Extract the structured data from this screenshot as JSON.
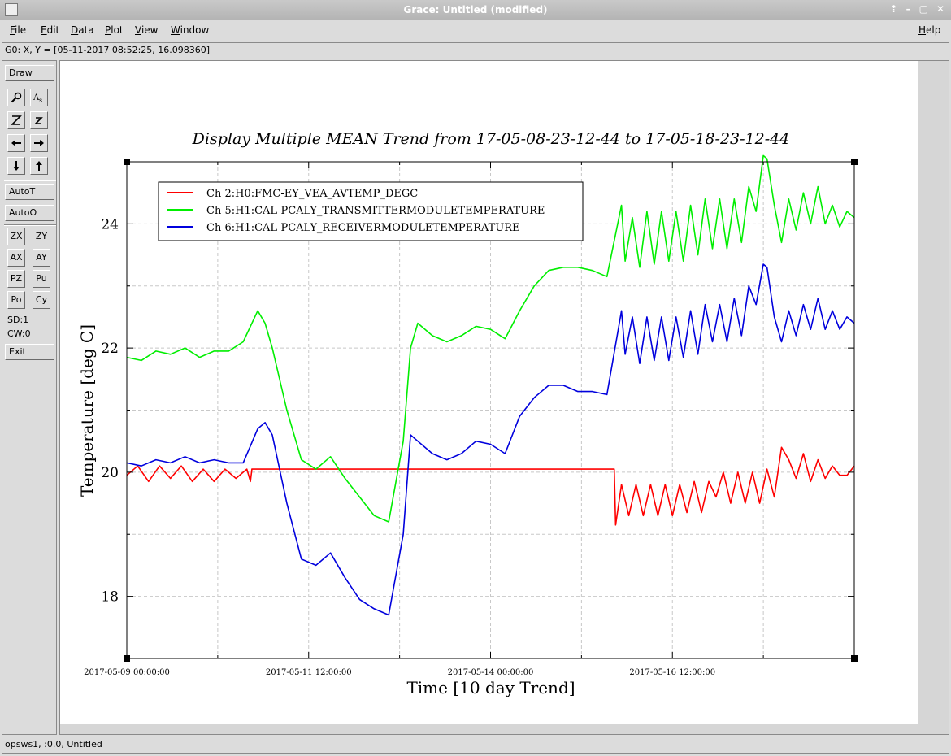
{
  "window": {
    "title": "Grace: Untitled (modified)",
    "controls": [
      "⇡",
      "–",
      "▢",
      "✕"
    ]
  },
  "menu": {
    "items": [
      "File",
      "Edit",
      "Data",
      "Plot",
      "View",
      "Window"
    ],
    "help": "Help"
  },
  "locator": {
    "text": "G0: X, Y = [05-11-2017 08:52:25, 16.098360]"
  },
  "toolbar": {
    "draw": "Draw",
    "autot": "AutoT",
    "autoo": "AutoO",
    "exit": "Exit",
    "zx": "ZX",
    "zy": "ZY",
    "ax": "AX",
    "ay": "AY",
    "pz": "PZ",
    "pu": "Pu",
    "po": "Po",
    "cy": "Cy",
    "sd": "SD:1",
    "cw": "CW:0",
    "icons": [
      "zoom-icon",
      "text-icon",
      "zoom-out-icon",
      "zoom-in-icon",
      "arrow-left-icon",
      "arrow-right-icon",
      "arrow-down-icon",
      "arrow-up-icon"
    ]
  },
  "status": {
    "text": "opsws1, :0.0, Untitled"
  },
  "chart_data": {
    "type": "line",
    "title": "Display Multiple MEAN Trend from 17-05-08-23-12-44 to 17-05-18-23-12-44",
    "xlabel": "Time [10 day Trend]",
    "ylabel": "Temperature [deg C]",
    "x_unit": "days since 2017-05-09 00:00:00",
    "xlim": [
      0,
      10
    ],
    "ylim": [
      17,
      25
    ],
    "x_ticks": [
      {
        "x": 0,
        "label": "2017-05-09 00:00:00"
      },
      {
        "x": 2.5,
        "label": "2017-05-11 12:00:00"
      },
      {
        "x": 5,
        "label": "2017-05-14 00:00:00"
      },
      {
        "x": 7.5,
        "label": "2017-05-16 12:00:00"
      }
    ],
    "y_ticks": [
      18,
      20,
      22,
      24
    ],
    "grid": true,
    "legend_position": "top-left",
    "series": [
      {
        "name": "Ch 2:H0:FMC-EY_VEA_AVTEMP_DEGC",
        "color": "#ff0000",
        "x": [
          0,
          0.15,
          0.3,
          0.45,
          0.6,
          0.75,
          0.9,
          1.05,
          1.2,
          1.35,
          1.5,
          1.65,
          1.7,
          1.72,
          3.0,
          4.5,
          6.0,
          6.7,
          6.72,
          6.8,
          6.9,
          7.0,
          7.1,
          7.2,
          7.3,
          7.4,
          7.5,
          7.6,
          7.7,
          7.8,
          7.9,
          8.0,
          8.1,
          8.2,
          8.3,
          8.4,
          8.5,
          8.6,
          8.7,
          8.8,
          8.9,
          9.0,
          9.1,
          9.2,
          9.3,
          9.4,
          9.5,
          9.6,
          9.7,
          9.8,
          9.9,
          10.0
        ],
        "y": [
          19.95,
          20.1,
          19.85,
          20.1,
          19.9,
          20.1,
          19.85,
          20.05,
          19.85,
          20.05,
          19.9,
          20.05,
          19.85,
          20.05,
          20.05,
          20.05,
          20.05,
          20.05,
          19.15,
          19.8,
          19.3,
          19.8,
          19.3,
          19.8,
          19.3,
          19.8,
          19.3,
          19.8,
          19.35,
          19.85,
          19.35,
          19.85,
          19.6,
          20.0,
          19.5,
          20.0,
          19.5,
          20.0,
          19.5,
          20.05,
          19.6,
          20.4,
          20.2,
          19.9,
          20.3,
          19.85,
          20.2,
          19.9,
          20.1,
          19.95,
          19.95,
          20.1
        ]
      },
      {
        "name": "Ch 5:H1:CAL-PCALY_TRANSMITTERMODULETEMPERATURE",
        "color": "#00ee00",
        "x": [
          0,
          0.2,
          0.4,
          0.6,
          0.8,
          1.0,
          1.2,
          1.4,
          1.6,
          1.8,
          1.9,
          2.0,
          2.2,
          2.4,
          2.6,
          2.8,
          3.0,
          3.2,
          3.4,
          3.6,
          3.8,
          3.9,
          4.0,
          4.2,
          4.4,
          4.6,
          4.8,
          5.0,
          5.2,
          5.4,
          5.6,
          5.8,
          6.0,
          6.2,
          6.4,
          6.6,
          6.8,
          6.85,
          6.95,
          7.05,
          7.15,
          7.25,
          7.35,
          7.45,
          7.55,
          7.65,
          7.75,
          7.85,
          7.95,
          8.05,
          8.15,
          8.25,
          8.35,
          8.45,
          8.55,
          8.65,
          8.75,
          8.8,
          8.9,
          9.0,
          9.1,
          9.2,
          9.3,
          9.4,
          9.5,
          9.6,
          9.7,
          9.8,
          9.9,
          10.0
        ],
        "y": [
          21.85,
          21.8,
          21.95,
          21.9,
          22.0,
          21.85,
          21.95,
          21.95,
          22.1,
          22.6,
          22.4,
          22.0,
          21.0,
          20.2,
          20.05,
          20.25,
          19.9,
          19.6,
          19.3,
          19.2,
          20.5,
          22.0,
          22.4,
          22.2,
          22.1,
          22.2,
          22.35,
          22.3,
          22.15,
          22.6,
          23.0,
          23.25,
          23.3,
          23.3,
          23.25,
          23.15,
          24.3,
          23.4,
          24.1,
          23.3,
          24.2,
          23.35,
          24.2,
          23.4,
          24.2,
          23.4,
          24.3,
          23.5,
          24.4,
          23.6,
          24.4,
          23.6,
          24.4,
          23.7,
          24.6,
          24.2,
          25.1,
          25.05,
          24.3,
          23.7,
          24.4,
          23.9,
          24.5,
          24.0,
          24.6,
          24.0,
          24.3,
          23.95,
          24.2,
          24.1
        ]
      },
      {
        "name": "Ch 6:H1:CAL-PCALY_RECEIVERMODULETEMPERATURE",
        "color": "#0000dd",
        "x": [
          0,
          0.2,
          0.4,
          0.6,
          0.8,
          1.0,
          1.2,
          1.4,
          1.6,
          1.8,
          1.9,
          2.0,
          2.2,
          2.4,
          2.6,
          2.8,
          3.0,
          3.2,
          3.4,
          3.6,
          3.8,
          3.9,
          4.0,
          4.2,
          4.4,
          4.6,
          4.8,
          5.0,
          5.2,
          5.4,
          5.6,
          5.8,
          6.0,
          6.2,
          6.4,
          6.6,
          6.8,
          6.85,
          6.95,
          7.05,
          7.15,
          7.25,
          7.35,
          7.45,
          7.55,
          7.65,
          7.75,
          7.85,
          7.95,
          8.05,
          8.15,
          8.25,
          8.35,
          8.45,
          8.55,
          8.65,
          8.75,
          8.8,
          8.9,
          9.0,
          9.1,
          9.2,
          9.3,
          9.4,
          9.5,
          9.6,
          9.7,
          9.8,
          9.9,
          10.0
        ],
        "y": [
          20.15,
          20.1,
          20.2,
          20.15,
          20.25,
          20.15,
          20.2,
          20.15,
          20.15,
          20.7,
          20.8,
          20.6,
          19.5,
          18.6,
          18.5,
          18.7,
          18.3,
          17.95,
          17.8,
          17.7,
          19.0,
          20.6,
          20.5,
          20.3,
          20.2,
          20.3,
          20.5,
          20.45,
          20.3,
          20.9,
          21.2,
          21.4,
          21.4,
          21.3,
          21.3,
          21.25,
          22.6,
          21.9,
          22.5,
          21.75,
          22.5,
          21.8,
          22.5,
          21.8,
          22.5,
          21.85,
          22.6,
          21.9,
          22.7,
          22.1,
          22.7,
          22.1,
          22.8,
          22.2,
          23.0,
          22.7,
          23.35,
          23.3,
          22.5,
          22.1,
          22.6,
          22.2,
          22.7,
          22.3,
          22.8,
          22.3,
          22.6,
          22.3,
          22.5,
          22.4
        ]
      }
    ]
  }
}
